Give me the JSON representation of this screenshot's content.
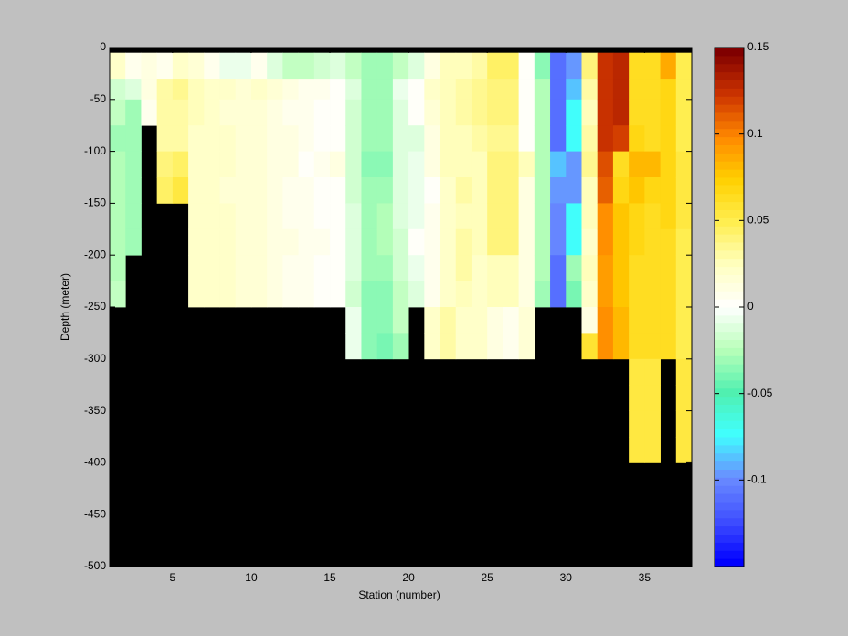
{
  "chart_data": {
    "type": "heatmap",
    "xlabel": "Station (number)",
    "ylabel": "Depth (meter)",
    "xlim": [
      1,
      38
    ],
    "ylim": [
      -500,
      0
    ],
    "xticks": [
      5,
      10,
      15,
      20,
      25,
      30,
      35
    ],
    "yticks": [
      0,
      -50,
      -100,
      -150,
      -200,
      -250,
      -300,
      -350,
      -400,
      -450,
      -500
    ],
    "x_edges": [
      1,
      2,
      3,
      4,
      5,
      6,
      7,
      8,
      9,
      10,
      11,
      12,
      13,
      14,
      15,
      16,
      17,
      18,
      19,
      20,
      21,
      22,
      23,
      24,
      25,
      26,
      27,
      28,
      29,
      30,
      31,
      32,
      33,
      34,
      35,
      36,
      37,
      38
    ],
    "y_edges": [
      -5,
      -30,
      -50,
      -75,
      -100,
      -125,
      -150,
      -175,
      -200,
      -225,
      -250,
      -275,
      -300,
      -325,
      -350,
      -375,
      -400
    ],
    "clim": [
      -0.15,
      0.15
    ],
    "cticks": [
      0.15,
      0.1,
      0.05,
      0,
      -0.05,
      -0.1
    ],
    "colormap": [
      "#0000ff",
      "#4050ff",
      "#6a8cff",
      "#40ffff",
      "#50f0b0",
      "#b8ffb8",
      "#ffffff",
      "#ffffc0",
      "#ffee50",
      "#ffd000",
      "#ff8800",
      "#cc3300",
      "#800000"
    ],
    "z": [
      [
        0.02,
        -0.015,
        -0.02,
        -0.03,
        -0.025,
        -0.025,
        -0.025,
        -0.025,
        -0.025,
        -0.02,
        null,
        null,
        null,
        null,
        null,
        null
      ],
      [
        0.005,
        -0.01,
        -0.03,
        -0.03,
        -0.03,
        -0.03,
        -0.03,
        -0.03,
        null,
        null,
        null,
        null,
        null,
        null,
        null,
        null
      ],
      [
        0.01,
        0.01,
        0.005,
        null,
        null,
        null,
        null,
        null,
        null,
        null,
        null,
        null,
        null,
        null,
        null,
        null
      ],
      [
        0.005,
        0.03,
        0.03,
        0.03,
        0.04,
        0.045,
        null,
        null,
        null,
        null,
        null,
        null,
        null,
        null,
        null,
        null
      ],
      [
        0.02,
        0.035,
        0.03,
        0.03,
        0.045,
        0.055,
        null,
        null,
        null,
        null,
        null,
        null,
        null,
        null,
        null,
        null
      ],
      [
        0.015,
        0.025,
        0.025,
        0.02,
        0.02,
        0.02,
        0.02,
        0.02,
        0.02,
        0.02,
        null,
        null,
        null,
        null,
        null,
        null
      ],
      [
        0.005,
        0.02,
        0.02,
        0.02,
        0.02,
        0.02,
        0.02,
        0.02,
        0.02,
        0.02,
        null,
        null,
        null,
        null,
        null,
        null
      ],
      [
        -0.005,
        0.02,
        0.015,
        0.02,
        0.02,
        0.015,
        0.02,
        0.02,
        0.02,
        0.02,
        null,
        null,
        null,
        null,
        null,
        null
      ],
      [
        -0.005,
        0.015,
        0.015,
        0.015,
        0.015,
        0.015,
        0.015,
        0.015,
        0.015,
        0.015,
        null,
        null,
        null,
        null,
        null,
        null
      ],
      [
        0.005,
        0.02,
        0.015,
        0.015,
        0.015,
        0.015,
        0.015,
        0.015,
        0.015,
        0.015,
        null,
        null,
        null,
        null,
        null,
        null
      ],
      [
        -0.01,
        0.015,
        0.01,
        0.01,
        0.01,
        0.01,
        0.01,
        0.01,
        0.01,
        0.01,
        null,
        null,
        null,
        null,
        null,
        null
      ],
      [
        -0.02,
        0.01,
        0.005,
        0.01,
        0.01,
        0.005,
        0.005,
        0.01,
        0.005,
        0.005,
        null,
        null,
        null,
        null,
        null,
        null
      ],
      [
        -0.02,
        0.005,
        0.005,
        0.005,
        0,
        0.005,
        0.005,
        0.005,
        0.005,
        0.005,
        null,
        null,
        null,
        null,
        null,
        null
      ],
      [
        -0.015,
        0.005,
        0,
        0,
        0.005,
        0,
        0,
        0.005,
        0,
        0,
        null,
        null,
        null,
        null,
        null,
        null
      ],
      [
        -0.01,
        0,
        0,
        0,
        0.01,
        0,
        0,
        0,
        0,
        0,
        null,
        null,
        null,
        null,
        null,
        null
      ],
      [
        -0.02,
        -0.01,
        -0.015,
        -0.015,
        -0.015,
        -0.015,
        -0.01,
        -0.01,
        -0.01,
        -0.015,
        -0.005,
        -0.005,
        null,
        null,
        null,
        null
      ],
      [
        -0.03,
        -0.03,
        -0.03,
        -0.03,
        -0.035,
        -0.03,
        -0.03,
        -0.03,
        -0.03,
        -0.035,
        -0.035,
        -0.035,
        null,
        null,
        null,
        null
      ],
      [
        -0.03,
        -0.03,
        -0.03,
        -0.03,
        -0.035,
        -0.03,
        -0.025,
        -0.025,
        -0.03,
        -0.035,
        -0.035,
        -0.04,
        null,
        null,
        null,
        null
      ],
      [
        -0.02,
        -0.005,
        -0.01,
        -0.01,
        -0.01,
        -0.01,
        -0.01,
        -0.015,
        -0.015,
        -0.02,
        -0.02,
        -0.03,
        null,
        null,
        null,
        null
      ],
      [
        -0.01,
        0,
        0,
        -0.01,
        -0.005,
        -0.005,
        -0.005,
        0,
        -0.005,
        -0.01,
        null,
        null,
        null,
        null,
        null,
        null
      ],
      [
        0.01,
        0.02,
        0.015,
        0.01,
        0.01,
        0,
        0.005,
        0.005,
        0.005,
        0.005,
        0.02,
        0.02,
        null,
        null,
        null,
        null
      ],
      [
        0.025,
        0.025,
        0.025,
        0.025,
        0.025,
        0.02,
        0.02,
        0.02,
        0.02,
        0.02,
        0.03,
        0.03,
        null,
        null,
        null,
        null
      ],
      [
        0.025,
        0.03,
        0.03,
        0.025,
        0.025,
        0.03,
        0.025,
        0.03,
        0.03,
        0.025,
        0.02,
        0.02,
        null,
        null,
        null,
        null
      ],
      [
        0.03,
        0.035,
        0.035,
        0.03,
        0.025,
        0.025,
        0.025,
        0.025,
        0.02,
        0.02,
        0.02,
        0.02,
        null,
        null,
        null,
        null
      ],
      [
        0.045,
        0.04,
        0.04,
        0.035,
        0.04,
        0.04,
        0.04,
        0.04,
        0.025,
        0.025,
        0.01,
        0.01,
        null,
        null,
        null,
        null
      ],
      [
        0.045,
        0.04,
        0.04,
        0.035,
        0.04,
        0.04,
        0.04,
        0.04,
        0.025,
        0.025,
        0.005,
        0.005,
        null,
        null,
        null,
        null
      ],
      [
        0,
        0,
        0,
        0,
        0.025,
        0.01,
        0.01,
        0.01,
        0.01,
        0.01,
        0.015,
        0.015,
        null,
        null,
        null,
        null
      ],
      [
        -0.035,
        -0.025,
        -0.025,
        -0.025,
        -0.025,
        -0.025,
        -0.025,
        -0.025,
        -0.025,
        -0.03,
        null,
        null,
        null,
        null,
        null,
        null
      ],
      [
        -0.11,
        -0.11,
        -0.11,
        -0.11,
        -0.085,
        -0.095,
        -0.1,
        -0.1,
        -0.11,
        -0.11,
        null,
        null,
        null,
        null,
        null,
        null
      ],
      [
        -0.095,
        -0.085,
        -0.075,
        -0.075,
        -0.095,
        -0.095,
        -0.075,
        -0.075,
        -0.03,
        -0.04,
        null,
        null,
        null,
        null,
        null,
        null
      ],
      [
        0.04,
        0.03,
        0.025,
        0.03,
        0.035,
        0.025,
        0.025,
        0.02,
        0.025,
        0.02,
        0.01,
        0.06,
        null,
        null,
        null,
        null
      ],
      [
        0.125,
        0.125,
        0.125,
        0.125,
        0.115,
        0.11,
        0.095,
        0.095,
        0.09,
        0.09,
        0.095,
        0.095,
        null,
        null,
        null,
        null
      ],
      [
        0.13,
        0.13,
        0.13,
        0.12,
        0.065,
        0.07,
        0.075,
        0.075,
        0.075,
        0.075,
        0.08,
        0.08,
        null,
        null,
        null,
        null
      ],
      [
        0.065,
        0.065,
        0.065,
        0.07,
        0.08,
        0.075,
        0.07,
        0.07,
        0.065,
        0.065,
        0.065,
        0.065,
        0.055,
        0.055,
        0.055,
        0.055
      ],
      [
        0.065,
        0.065,
        0.065,
        0.065,
        0.08,
        0.07,
        0.065,
        0.065,
        0.065,
        0.065,
        0.065,
        0.065,
        0.055,
        0.055,
        0.055,
        0.055
      ],
      [
        0.085,
        0.07,
        0.07,
        0.07,
        0.07,
        0.07,
        0.07,
        0.065,
        0.065,
        0.065,
        0.065,
        0.065,
        null,
        null,
        null,
        null
      ],
      [
        0.05,
        0.05,
        0.05,
        0.05,
        0.055,
        0.055,
        0.055,
        0.05,
        0.05,
        0.05,
        0.05,
        0.05,
        0.055,
        0.055,
        0.055,
        0.055
      ]
    ]
  }
}
